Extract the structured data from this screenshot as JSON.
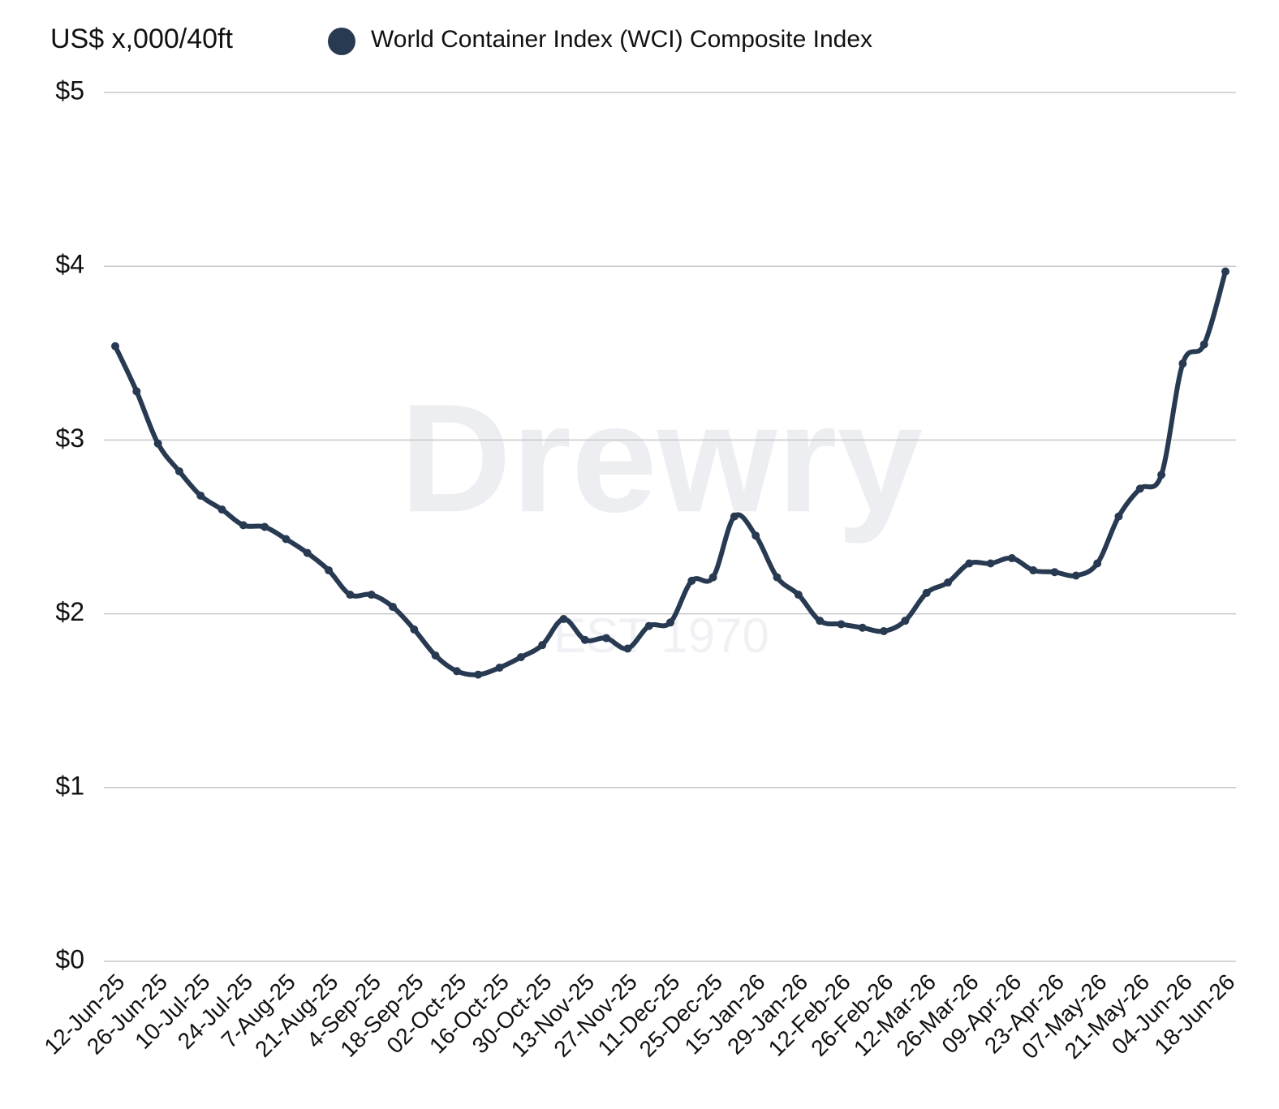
{
  "chart_data": {
    "type": "line",
    "y_axis_title": "US$ x,000/40ft",
    "watermark": "Drewry",
    "watermark_subtitle": "EST 1970",
    "categories": [
      "12-Jun-25",
      null,
      "26-Jun-25",
      null,
      "10-Jul-25",
      null,
      "24-Jul-25",
      null,
      "7-Aug-25",
      null,
      "21-Aug-25",
      null,
      "4-Sep-25",
      null,
      "18-Sep-25",
      null,
      "02-Oct-25",
      null,
      "16-Oct-25",
      null,
      "30-Oct-25",
      null,
      "13-Nov-25",
      null,
      "27-Nov-25",
      null,
      "11-Dec-25",
      null,
      "25-Dec-25",
      null,
      "15-Jan-26",
      null,
      "29-Jan-26",
      null,
      "12-Feb-26",
      null,
      "26-Feb-26",
      null,
      "12-Mar-26",
      null,
      "26-Mar-26",
      null,
      "09-Apr-26",
      null,
      "23-Apr-26",
      null,
      "07-May-26",
      null,
      "21-May-26",
      null,
      "04-Jun-26",
      null,
      "18-Jun-26"
    ],
    "series": [
      {
        "name": "World Container Index (WCI) Composite Index",
        "color": "#283a52",
        "values": [
          3.54,
          3.28,
          2.98,
          2.82,
          2.68,
          2.6,
          2.51,
          2.5,
          2.43,
          2.35,
          2.25,
          2.11,
          2.11,
          2.04,
          1.91,
          1.76,
          1.67,
          1.65,
          1.69,
          1.75,
          1.82,
          1.97,
          1.85,
          1.86,
          1.8,
          1.93,
          1.95,
          2.19,
          2.21,
          2.56,
          2.45,
          2.21,
          2.11,
          1.96,
          1.94,
          1.92,
          1.9,
          1.96,
          2.12,
          2.18,
          2.29,
          2.29,
          2.32,
          2.25,
          2.24,
          2.22,
          2.29,
          2.56,
          2.72,
          2.8,
          3.44,
          3.55,
          3.97
        ]
      }
    ],
    "ylim": [
      0,
      5
    ],
    "yticks": [
      {
        "value": 0,
        "label": "$0"
      },
      {
        "value": 1,
        "label": "$1"
      },
      {
        "value": 2,
        "label": "$2"
      },
      {
        "value": 3,
        "label": "$3"
      },
      {
        "value": 4,
        "label": "$4"
      },
      {
        "value": 5,
        "label": "$5"
      }
    ],
    "grid": true
  }
}
